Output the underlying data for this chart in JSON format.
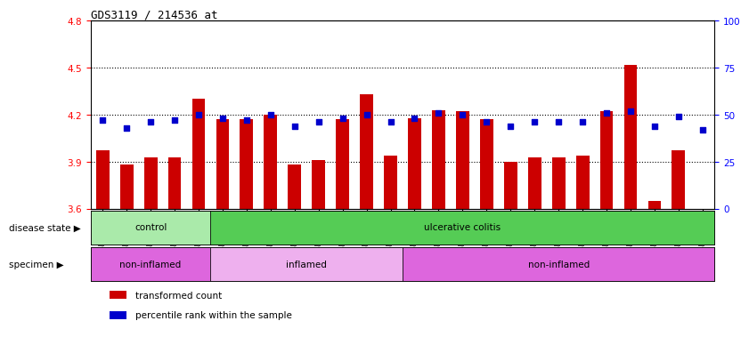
{
  "title": "GDS3119 / 214536_at",
  "samples": [
    "GSM240023",
    "GSM240024",
    "GSM240025",
    "GSM240026",
    "GSM240027",
    "GSM239617",
    "GSM239618",
    "GSM239714",
    "GSM239716",
    "GSM239717",
    "GSM239718",
    "GSM239719",
    "GSM239720",
    "GSM239723",
    "GSM239725",
    "GSM239726",
    "GSM239727",
    "GSM239729",
    "GSM239730",
    "GSM239731",
    "GSM239732",
    "GSM240022",
    "GSM240028",
    "GSM240029",
    "GSM240030",
    "GSM240031"
  ],
  "red_values": [
    3.97,
    3.88,
    3.93,
    3.93,
    4.3,
    4.17,
    4.17,
    4.2,
    3.88,
    3.91,
    4.17,
    4.33,
    3.94,
    4.18,
    4.23,
    4.22,
    4.17,
    3.9,
    3.93,
    3.93,
    3.94,
    4.22,
    4.52,
    3.65,
    3.97,
    3.6
  ],
  "blue_values": [
    47,
    43,
    46,
    47,
    50,
    48,
    47,
    50,
    44,
    46,
    48,
    50,
    46,
    48,
    51,
    50,
    46,
    44,
    46,
    46,
    46,
    51,
    52,
    44,
    49,
    42
  ],
  "ylim_left": [
    3.6,
    4.8
  ],
  "ylim_right": [
    0,
    100
  ],
  "yticks_left": [
    3.6,
    3.9,
    4.2,
    4.5,
    4.8
  ],
  "yticks_right": [
    0,
    25,
    50,
    75,
    100
  ],
  "bar_color": "#CC0000",
  "dot_color": "#0000CC",
  "grid_lines": [
    3.9,
    4.2,
    4.5
  ],
  "ax_bg_color": "#FFFFFF",
  "disease_groups": [
    {
      "label": "control",
      "start": 0,
      "end": 4,
      "color": "#AAEAAA"
    },
    {
      "label": "ulcerative colitis",
      "start": 5,
      "end": 25,
      "color": "#55CC55"
    }
  ],
  "specimen_groups": [
    {
      "label": "non-inflamed",
      "start": 0,
      "end": 4,
      "color": "#DD66DD"
    },
    {
      "label": "inflamed",
      "start": 5,
      "end": 12,
      "color": "#EEB0EE"
    },
    {
      "label": "non-inflamed",
      "start": 13,
      "end": 25,
      "color": "#DD66DD"
    }
  ],
  "legend_items": [
    {
      "label": "transformed count",
      "color": "#CC0000"
    },
    {
      "label": "percentile rank within the sample",
      "color": "#0000CC"
    }
  ],
  "label_disease_state": "disease state",
  "label_specimen": "specimen"
}
